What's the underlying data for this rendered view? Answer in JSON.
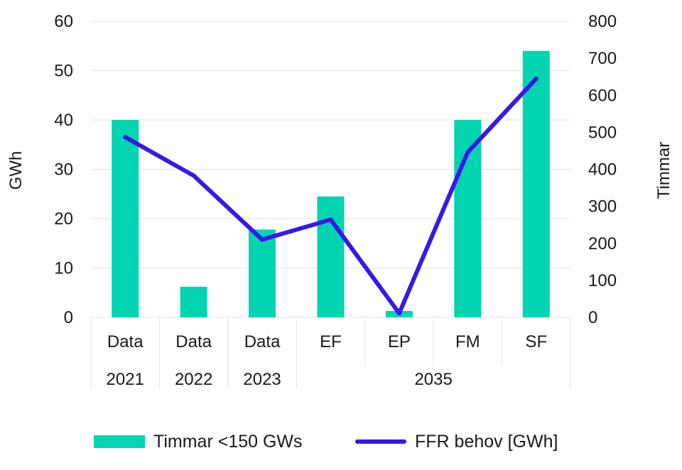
{
  "chart_data": {
    "type": "bar+line",
    "categories": [
      {
        "top": "Data",
        "group": "2021"
      },
      {
        "top": "Data",
        "group": "2022"
      },
      {
        "top": "Data",
        "group": "2023"
      },
      {
        "top": "EF",
        "group": "2035"
      },
      {
        "top": "EP",
        "group": "2035"
      },
      {
        "top": "FM",
        "group": "2035"
      },
      {
        "top": "SF",
        "group": "2035"
      }
    ],
    "groups": [
      "2021",
      "2022",
      "2023",
      "2035"
    ],
    "series": [
      {
        "name": "Timmar <150 GWs",
        "kind": "bar",
        "axis": "left",
        "values": [
          40,
          6.2,
          17.8,
          24.5,
          1.3,
          40,
          54
        ]
      },
      {
        "name": "FFR behov [GWh]",
        "kind": "line",
        "axis": "right",
        "values": [
          487,
          383,
          210,
          264,
          11,
          446,
          645
        ]
      }
    ],
    "y_left": {
      "label": "GWh",
      "range": [
        0,
        60
      ],
      "ticks": [
        0,
        10,
        20,
        30,
        40,
        50,
        60
      ]
    },
    "y_right": {
      "label": "Timmar",
      "range": [
        0,
        800
      ],
      "ticks": [
        "0",
        "100",
        "200",
        "300",
        "400",
        "500",
        "600",
        "700",
        "800"
      ]
    },
    "grid": true,
    "legend_position": "bottom",
    "colors": {
      "bar": "#00d4b1",
      "line": "#3b17e6",
      "grid": "#e4e4e4"
    }
  },
  "legend": {
    "bar_label": "Timmar <150 GWs",
    "line_label": "FFR behov [GWh]"
  }
}
